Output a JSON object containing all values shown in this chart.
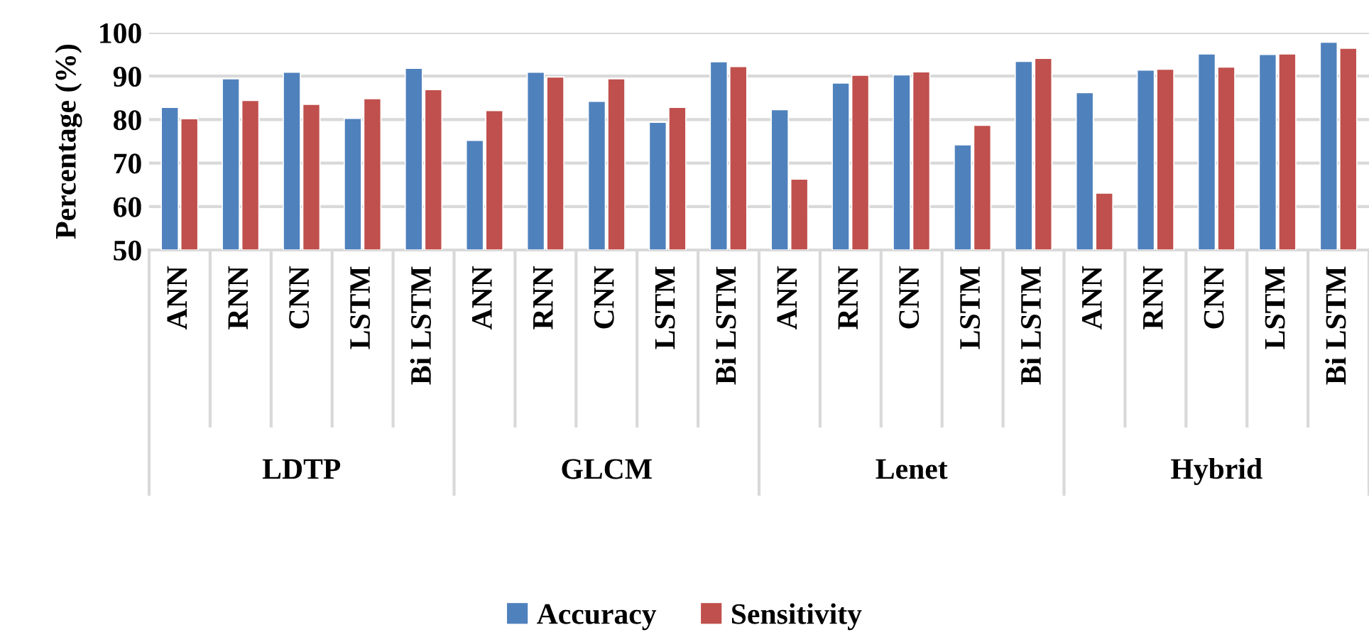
{
  "chart_data": {
    "type": "bar",
    "ylabel": "Percentage (%)",
    "categories": [
      "ANN",
      "RNN",
      "CNN",
      "LSTM",
      "Bi LSTM",
      "ANN",
      "RNN",
      "CNN",
      "LSTM",
      "Bi LSTM",
      "ANN",
      "RNN",
      "CNN",
      "LSTM",
      "Bi LSTM",
      "ANN",
      "RNN",
      "CNN",
      "LSTM",
      "Bi LSTM"
    ],
    "annotations": [
      "LDTP",
      "GLCM",
      "Lenet",
      "Hybrid"
    ],
    "series": [
      {
        "name": "Accuracy",
        "color": "#4f81bd",
        "values": [
          82.8,
          89.4,
          90.9,
          80.3,
          91.8,
          75.2,
          90.9,
          84.2,
          79.4,
          93.3,
          82.3,
          88.4,
          90.3,
          74.2,
          93.4,
          86.2,
          91.4,
          95.1,
          95.0,
          97.8
        ]
      },
      {
        "name": "Sensitivity",
        "color": "#c0504d",
        "values": [
          80.2,
          84.4,
          83.5,
          84.8,
          86.9,
          82.1,
          89.8,
          89.4,
          82.8,
          92.2,
          66.3,
          90.2,
          91.0,
          78.7,
          94.1,
          63.1,
          91.6,
          92.1,
          95.1,
          96.4
        ]
      }
    ],
    "ylim": [
      50,
      100
    ],
    "yticks": [
      50,
      60,
      70,
      80,
      90,
      100
    ],
    "grid": "y",
    "legend": "bottom"
  }
}
